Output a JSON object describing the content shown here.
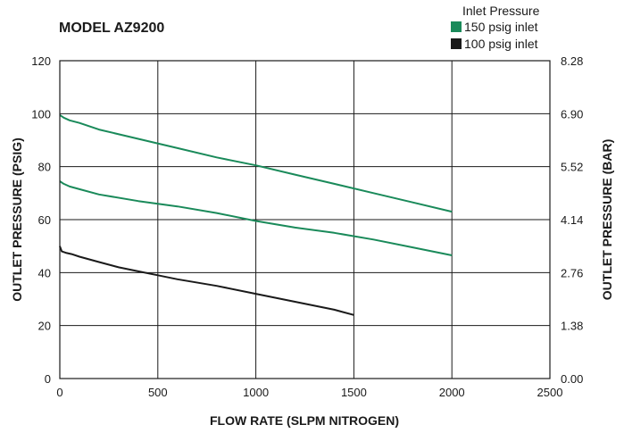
{
  "chart_data": {
    "type": "line",
    "title": "MODEL AZ9200",
    "xlabel": "FLOW RATE (SLPM NITROGEN)",
    "ylabel": "OUTLET PRESSURE (PSIG)",
    "y2label": "OUTLET PRESSURE (BAR)",
    "xlim": [
      0,
      2500
    ],
    "ylim": [
      0,
      120
    ],
    "xticks": [
      0,
      500,
      1000,
      1500,
      2000,
      2500
    ],
    "yticks": [
      0,
      20,
      40,
      60,
      80,
      100,
      120
    ],
    "y2ticks": [
      "0.00",
      "1.38",
      "2.76",
      "4.14",
      "5.52",
      "6.90",
      "8.28"
    ],
    "grid": true,
    "legend": {
      "title": "Inlet Pressure",
      "position": "top-right",
      "entries": [
        {
          "label": "150 psig inlet",
          "color": "#1a8a5a"
        },
        {
          "label": "100 psig inlet",
          "color": "#1a1a1a"
        }
      ]
    },
    "series": [
      {
        "color": "#1a8a5a",
        "x": [
          0,
          20,
          50,
          100,
          200,
          400,
          600,
          800,
          1000,
          1200,
          1400,
          1600,
          1800,
          2000
        ],
        "y": [
          99.5,
          98.5,
          97.5,
          96.5,
          94,
          90.5,
          87,
          83.5,
          80.5,
          77,
          73.5,
          70,
          66.5,
          63
        ]
      },
      {
        "color": "#1a8a5a",
        "x": [
          0,
          20,
          50,
          100,
          200,
          400,
          600,
          800,
          1000,
          1200,
          1400,
          1600,
          1800,
          2000
        ],
        "y": [
          74.5,
          73.5,
          72.5,
          71.5,
          69.5,
          67,
          65,
          62.5,
          59.5,
          57,
          55,
          52.5,
          49.5,
          46.5
        ]
      },
      {
        "color": "#1a1a1a",
        "x": [
          0,
          10,
          30,
          60,
          100,
          200,
          300,
          400,
          500,
          600,
          800,
          1000,
          1200,
          1400,
          1500
        ],
        "y": [
          50,
          48,
          47.5,
          47,
          46,
          44,
          42,
          40.5,
          39,
          37.5,
          35,
          32,
          29,
          26,
          24
        ]
      }
    ]
  }
}
